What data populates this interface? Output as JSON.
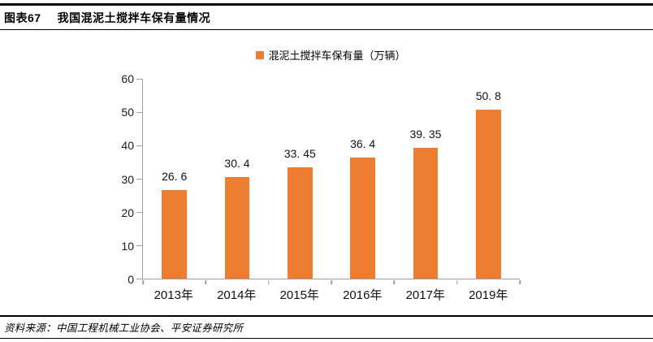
{
  "header": {
    "figure_label": "图表67",
    "title": "我国混泥土搅拌车保有量情况"
  },
  "chart_data": {
    "type": "bar",
    "title": "我国混泥土搅拌车保有量情况",
    "legend": "混泥土搅拌车保有量（万辆）",
    "legend_position": "top-center",
    "categories": [
      "2013年",
      "2014年",
      "2015年",
      "2016年",
      "2017年",
      "2019年"
    ],
    "values": [
      26.6,
      30.4,
      33.45,
      36.4,
      39.35,
      50.8
    ],
    "value_labels": [
      "26. 6",
      "30. 4",
      "33. 45",
      "36. 4",
      "39. 35",
      "50. 8"
    ],
    "xlabel": "",
    "ylabel": "",
    "ylim": [
      0,
      60
    ],
    "yticks": [
      0,
      10,
      20,
      30,
      40,
      50,
      60
    ],
    "grid": false,
    "bar_color": "#ED7D31",
    "axis_color": "#9E9E9E"
  },
  "footer": {
    "source": "资料来源：中国工程机械工业协会、平安证券研究所"
  }
}
